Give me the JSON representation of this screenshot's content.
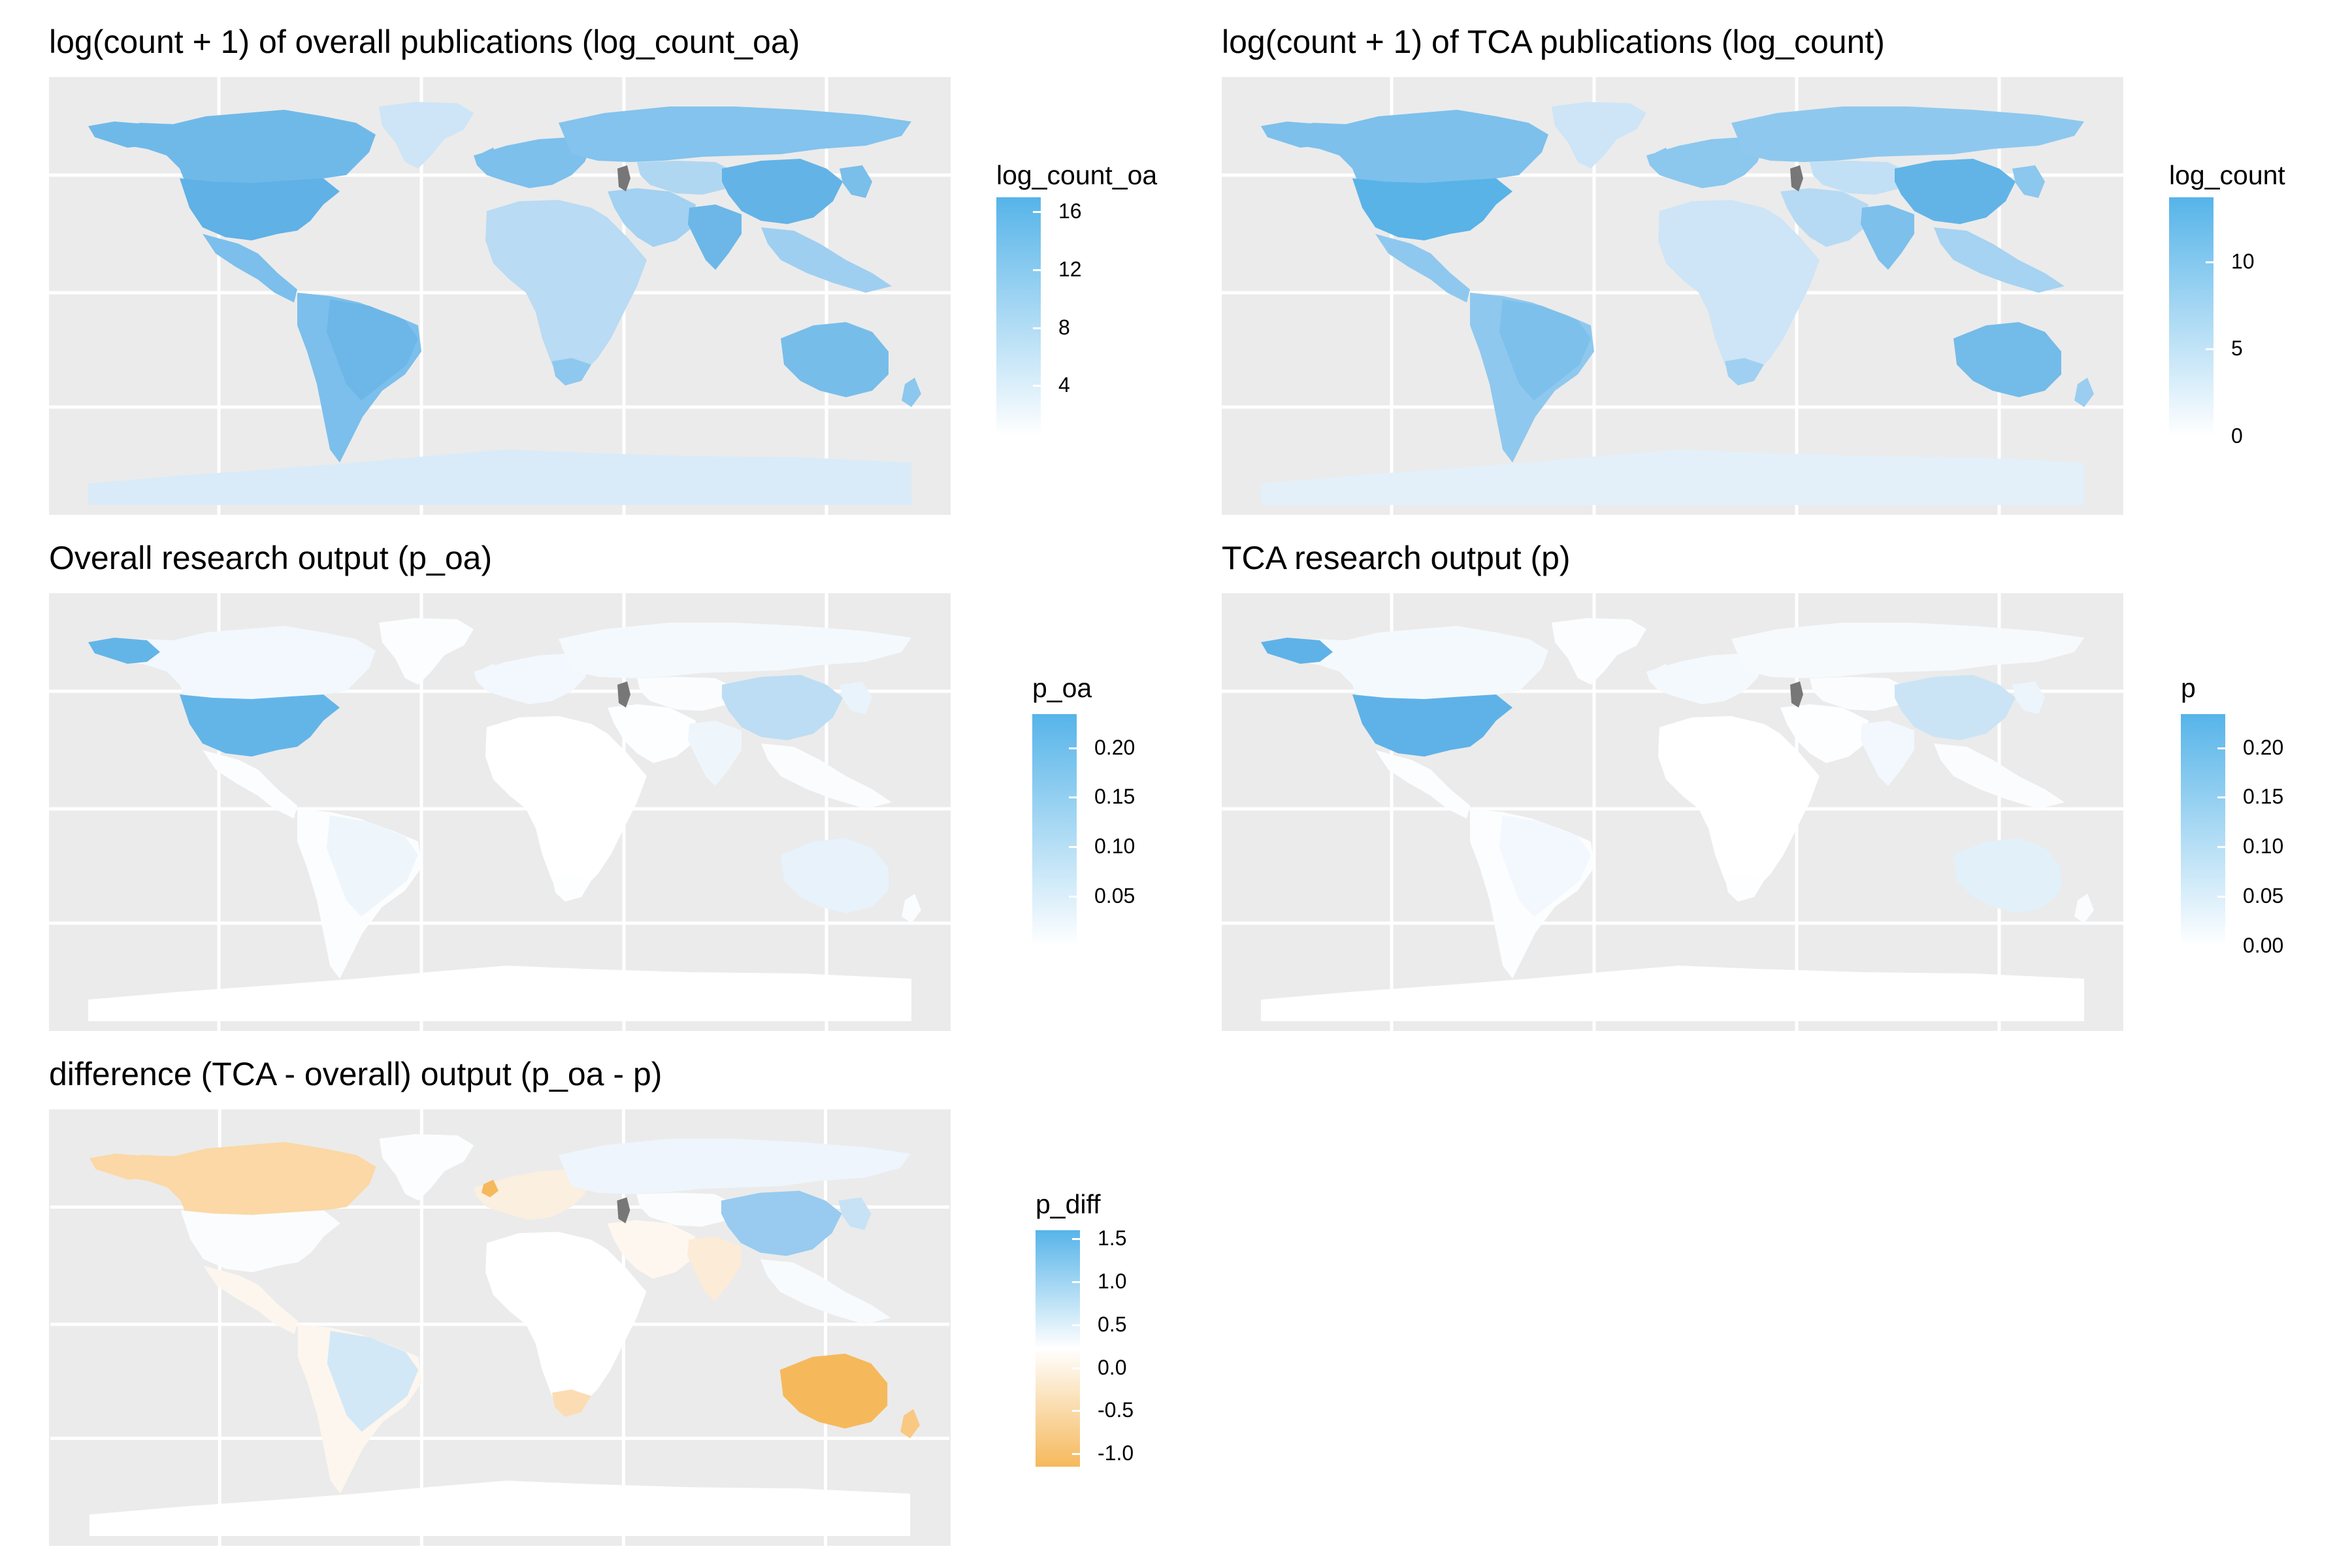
{
  "figure": {
    "panels": [
      {
        "id": "log_count_oa",
        "title": "log(count + 1) of overall publications (log_count_oa)",
        "legend": {
          "title": "log_count_oa",
          "ticks": [
            "16",
            "12",
            "8",
            "4"
          ],
          "gradient": [
            "#56b4e9",
            "#ffffff"
          ],
          "tick_values": [
            16,
            12,
            8,
            4
          ],
          "range": [
            0.5,
            17
          ]
        },
        "colors": {
          "north_america": "#6fb9e9",
          "usa": "#5fb1e6",
          "greenland": "#cde5f6",
          "south_america": "#7cbfec",
          "brazil": "#6cb7e8",
          "europe": "#7dc0ec",
          "russia": "#83c3ed",
          "africa": "#b9dbf3",
          "south_africa": "#8ec8ee",
          "middle_east": "#a3d1f1",
          "india": "#6cb7e8",
          "china": "#63b3e7",
          "east_asia": "#7abeea",
          "southeast_asia": "#9ecff1",
          "australia": "#77bdea",
          "new_zealand": "#8cc7ee",
          "antarctica": "#d9ebf8",
          "central_asia": "#b0d7f2",
          "caspian": "#777777"
        }
      },
      {
        "id": "log_count",
        "title": "log(count + 1) of TCA publications (log_count)",
        "legend": {
          "title": "log_count",
          "ticks": [
            "10",
            "5",
            "0"
          ],
          "gradient": [
            "#56b4e9",
            "#ffffff"
          ],
          "tick_values": [
            10,
            5,
            0
          ],
          "range": [
            0,
            13.7
          ]
        },
        "colors": {
          "north_america": "#7dc0ec",
          "usa": "#59b3e7",
          "greenland": "#cde5f6",
          "south_america": "#8fc8ee",
          "brazil": "#7dc0ec",
          "europe": "#8cc7ee",
          "russia": "#8fc8ee",
          "africa": "#cde5f6",
          "south_africa": "#a0d0f1",
          "middle_east": "#b6daf3",
          "india": "#7dc0ec",
          "china": "#62b4e7",
          "east_asia": "#8cc7ee",
          "southeast_asia": "#a6d3f1",
          "australia": "#73bbe9",
          "new_zealand": "#9acdf0",
          "antarctica": "#e3f0fa",
          "central_asia": "#c2e0f5",
          "caspian": "#777777"
        }
      },
      {
        "id": "p_oa",
        "title": "Overall research output (p_oa)",
        "legend": {
          "title": "p_oa",
          "ticks": [
            "0.20",
            "0.15",
            "0.10",
            "0.05"
          ],
          "gradient": [
            "#56b4e9",
            "#ffffff"
          ],
          "tick_values": [
            0.2,
            0.15,
            0.1,
            0.05
          ],
          "range": [
            0.0,
            0.234
          ]
        },
        "colors": {
          "north_america": "#f2f8fd",
          "usa": "#63b5e8",
          "greenland": "#fbfdfe",
          "south_america": "#fbfdfe",
          "brazil": "#eef6fc",
          "europe": "#f2f8fd",
          "russia": "#f4f9fd",
          "africa": "#ffffff",
          "south_africa": "#fdfeff",
          "middle_east": "#fdfeff",
          "india": "#eef6fc",
          "china": "#bcddf4",
          "east_asia": "#e9f3fb",
          "southeast_asia": "#fafcfe",
          "australia": "#e7f2fb",
          "new_zealand": "#fafcfe",
          "antarctica": "#ffffff",
          "central_asia": "#fafcfe",
          "caspian": "#777777",
          "alaska": "#63b5e8"
        }
      },
      {
        "id": "p",
        "title": "TCA research output (p)",
        "legend": {
          "title": "p",
          "ticks": [
            "0.20",
            "0.15",
            "0.10",
            "0.05",
            "0.00"
          ],
          "gradient": [
            "#56b4e9",
            "#ffffff"
          ],
          "tick_values": [
            0.2,
            0.15,
            0.1,
            0.05,
            0.0
          ],
          "range": [
            0.0,
            0.234
          ]
        },
        "colors": {
          "north_america": "#f4f9fd",
          "usa": "#5fb2e7",
          "greenland": "#fbfdfe",
          "south_america": "#fbfdfe",
          "brazil": "#f2f8fd",
          "europe": "#f4f9fd",
          "russia": "#f6fafd",
          "africa": "#ffffff",
          "south_africa": "#fdfeff",
          "middle_east": "#fdfeff",
          "india": "#f2f8fd",
          "china": "#cae4f6",
          "east_asia": "#ecf5fc",
          "southeast_asia": "#fafcfe",
          "australia": "#e2f0fa",
          "new_zealand": "#fafcfe",
          "antarctica": "#ffffff",
          "central_asia": "#fafcfe",
          "caspian": "#777777",
          "alaska": "#5fb2e7"
        }
      },
      {
        "id": "p_diff",
        "title": "difference (TCA - overall) output (p_oa - p)",
        "legend": {
          "title": "p_diff",
          "ticks": [
            "1.5",
            "1.0",
            "0.5",
            "0.0",
            "-0.5",
            "-1.0"
          ],
          "gradient": [
            "#56b4e9",
            "#ffffff",
            "#f5b95c"
          ],
          "tick_values": [
            1.5,
            1.0,
            0.5,
            0.0,
            -0.5,
            -1.0
          ],
          "range": [
            -1.15,
            1.6
          ]
        },
        "colors": {
          "north_america": "#fbd8a5",
          "usa": "#fbfcfe",
          "greenland": "#fbfdfe",
          "south_america": "#fdf6ee",
          "brazil": "#d2e8f7",
          "europe": "#fbefe0",
          "russia": "#eef5fc",
          "africa": "#ffffff",
          "south_africa": "#fcdcb2",
          "middle_east": "#fdf7ef",
          "india": "#fcebd6",
          "china": "#98cbef",
          "east_asia": "#c7e2f5",
          "southeast_asia": "#f7fbfe",
          "australia": "#f5b95c",
          "new_zealand": "#f9c983",
          "antarctica": "#ffffff",
          "central_asia": "#fafcfe",
          "caspian": "#777777",
          "uk": "#f5b95c"
        }
      }
    ]
  }
}
